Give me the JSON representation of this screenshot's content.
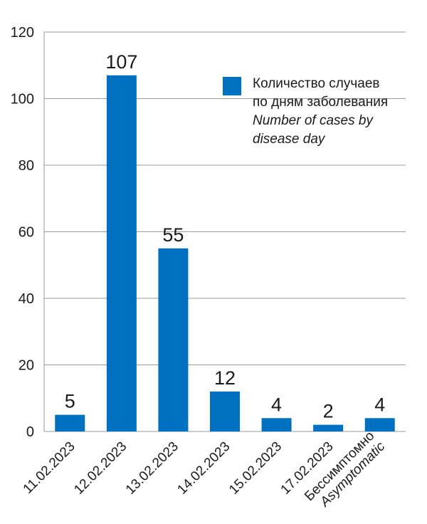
{
  "chart_data": {
    "type": "bar",
    "categories": [
      [
        "11.02.2023"
      ],
      [
        "12.02.2023"
      ],
      [
        "13.02.2023"
      ],
      [
        "14.02.2023"
      ],
      [
        "15.02.2023"
      ],
      [
        "17.02.2023"
      ],
      [
        "Бессимптомно",
        "Asymptomatic"
      ]
    ],
    "series": [
      {
        "name": "Количество случаев по дням заболевания / Number of cases by disease day",
        "values": [
          5,
          107,
          55,
          12,
          4,
          2,
          4
        ]
      }
    ],
    "ylim": [
      0,
      120
    ],
    "yticks": [
      0,
      20,
      40,
      60,
      80,
      100,
      120
    ],
    "grid": true,
    "legend_position": "top-right",
    "colors": {
      "bar": "#0070c0",
      "grid": "#9a9a9a"
    },
    "legend": {
      "lines": [
        {
          "text": "Количество случаев",
          "italic": false
        },
        {
          "text": "по дням заболевания",
          "italic": false
        },
        {
          "text": "Number of cases by",
          "italic": true
        },
        {
          "text": "disease day",
          "italic": true
        }
      ]
    }
  }
}
